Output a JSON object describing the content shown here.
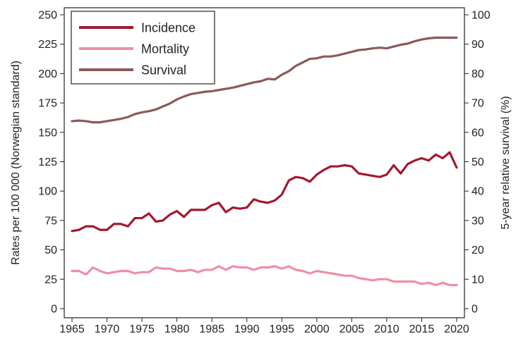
{
  "chart_data": {
    "type": "line",
    "title": "",
    "xlabel": "",
    "ylabel_left": "Rates per 100 000 (Norwegian standard)",
    "ylabel_right": "5-year relative survival (%)",
    "x": [
      1965,
      1966,
      1967,
      1968,
      1969,
      1970,
      1971,
      1972,
      1973,
      1974,
      1975,
      1976,
      1977,
      1978,
      1979,
      1980,
      1981,
      1982,
      1983,
      1984,
      1985,
      1986,
      1987,
      1988,
      1989,
      1990,
      1991,
      1992,
      1993,
      1994,
      1995,
      1996,
      1997,
      1998,
      1999,
      2000,
      2001,
      2002,
      2003,
      2004,
      2005,
      2006,
      2007,
      2008,
      2009,
      2010,
      2011,
      2012,
      2013,
      2014,
      2015,
      2016,
      2017,
      2018,
      2019,
      2020
    ],
    "xlim": [
      1964,
      2021
    ],
    "xticks": [
      1965,
      1970,
      1975,
      1980,
      1985,
      1990,
      1995,
      2000,
      2005,
      2010,
      2015,
      2020
    ],
    "ylim_left": [
      0,
      250
    ],
    "yticks_left": [
      0,
      25,
      50,
      75,
      100,
      125,
      150,
      175,
      200,
      225,
      250
    ],
    "ylim_right": [
      0,
      100
    ],
    "yticks_right": [
      0,
      10,
      20,
      30,
      40,
      50,
      60,
      70,
      80,
      90,
      100
    ],
    "series": [
      {
        "name": "Incidence",
        "axis": "left",
        "color": "#a3192f",
        "values": [
          66,
          67,
          70,
          70,
          67,
          67,
          72,
          72,
          70,
          77,
          77,
          81,
          74,
          75,
          80,
          83,
          78,
          84,
          84,
          84,
          88,
          90,
          82,
          86,
          85,
          86,
          93,
          91,
          90,
          92,
          97,
          109,
          112,
          111,
          108,
          114,
          118,
          121,
          121,
          122,
          121,
          115,
          114,
          113,
          112,
          114,
          122,
          115,
          123,
          126,
          128,
          126,
          131,
          128,
          133,
          120
        ]
      },
      {
        "name": "Mortality",
        "axis": "left",
        "color": "#ee8fa3",
        "values": [
          32,
          32,
          29,
          35,
          32,
          30,
          31,
          32,
          32,
          30,
          31,
          31,
          35,
          34,
          34,
          32,
          32,
          33,
          31,
          33,
          33,
          36,
          33,
          36,
          35,
          35,
          33,
          35,
          35,
          36,
          34,
          36,
          33,
          32,
          30,
          32,
          31,
          30,
          29,
          28,
          28,
          26,
          25,
          24,
          25,
          25,
          23,
          23,
          23,
          23,
          21,
          22,
          20,
          22,
          20,
          20
        ]
      },
      {
        "name": "Survival",
        "axis": "right",
        "color": "#8a5a5a",
        "values": [
          63.8,
          64,
          63.8,
          63.4,
          63.4,
          63.8,
          64.2,
          64.6,
          65.2,
          66.2,
          66.8,
          67.2,
          67.8,
          68.8,
          69.8,
          71.2,
          72.2,
          73,
          73.4,
          73.8,
          74,
          74.4,
          74.8,
          75.2,
          75.8,
          76.4,
          77,
          77.4,
          78.2,
          78,
          79.6,
          80.8,
          82.6,
          83.8,
          85,
          85.2,
          85.8,
          85.8,
          86.2,
          86.8,
          87.4,
          88,
          88.2,
          88.6,
          88.8,
          88.6,
          89.2,
          89.8,
          90.2,
          91,
          91.6,
          92,
          92.2,
          92.2,
          92.2,
          92.2
        ]
      }
    ],
    "legend": {
      "position": "top-left",
      "entries": [
        "Incidence",
        "Mortality",
        "Survival"
      ]
    },
    "grid": false
  }
}
